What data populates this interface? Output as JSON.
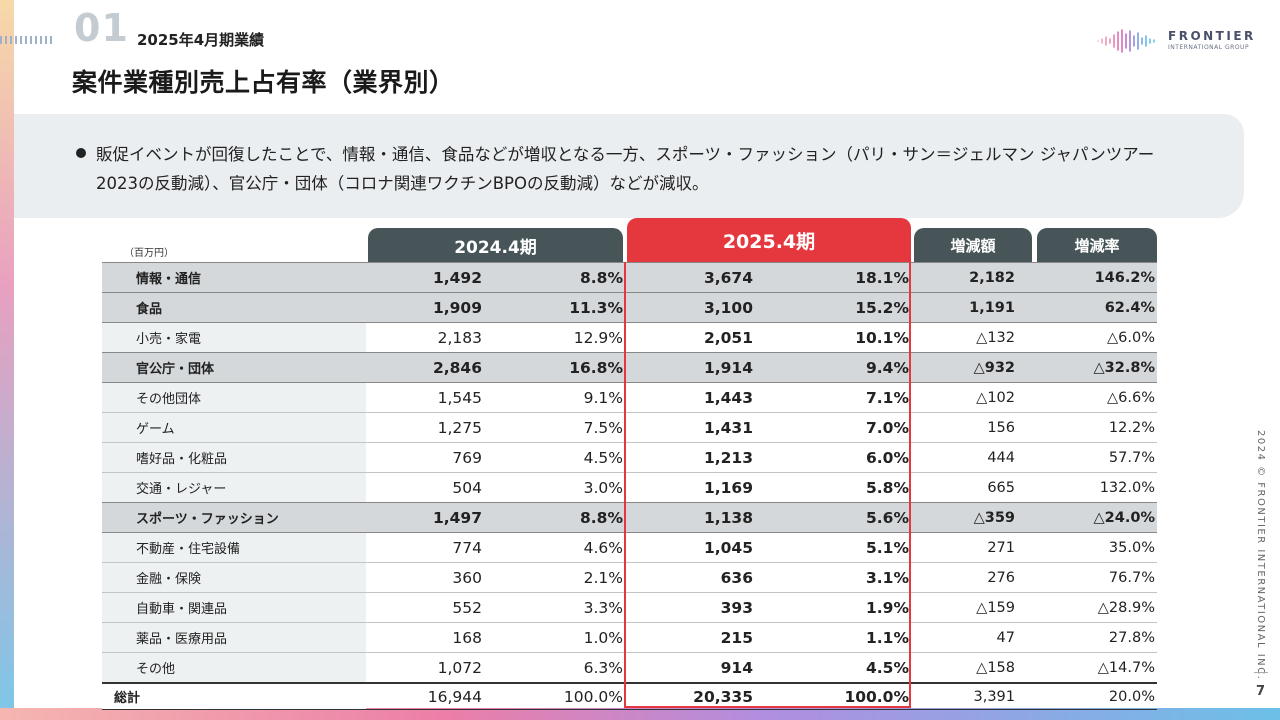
{
  "section": {
    "number": "01",
    "subtitle": "2025年4月期業績"
  },
  "title": "案件業種別売上占有率（業界別）",
  "logo": {
    "name": "FRONTIER",
    "sub": "INTERNATIONAL GROUP"
  },
  "summary": "販促イベントが回復したことで、情報・通信、食品などが増収となる一方、スポーツ・ファッション（パリ・サン＝ジェルマン ジャパンツアー2023の反動減）、官公庁・団体（コロナ関連ワクチンBPOの反動減）などが減収。",
  "copyright": "2024 © FRONTIER INTERNATIONAL INC.",
  "page_number": "7",
  "table": {
    "unit": "（百万円）",
    "headers": {
      "fy2024": "2024.4期",
      "fy2025": "2025.4期",
      "diff": "増減額",
      "rate": "増減率"
    },
    "rows": [
      {
        "label": "情報・通信",
        "v24": "1,492",
        "p24": "8.8%",
        "v25": "3,674",
        "p25": "18.1%",
        "diff": "2,182",
        "rate": "146.2%",
        "hl": true
      },
      {
        "label": "食品",
        "v24": "1,909",
        "p24": "11.3%",
        "v25": "3,100",
        "p25": "15.2%",
        "diff": "1,191",
        "rate": "62.4%",
        "hl": true
      },
      {
        "label": "小売・家電",
        "v24": "2,183",
        "p24": "12.9%",
        "v25": "2,051",
        "p25": "10.1%",
        "diff": "△132",
        "rate": "△6.0%",
        "hl": false
      },
      {
        "label": "官公庁・団体",
        "v24": "2,846",
        "p24": "16.8%",
        "v25": "1,914",
        "p25": "9.4%",
        "diff": "△932",
        "rate": "△32.8%",
        "hl": true
      },
      {
        "label": "その他団体",
        "v24": "1,545",
        "p24": "9.1%",
        "v25": "1,443",
        "p25": "7.1%",
        "diff": "△102",
        "rate": "△6.6%",
        "hl": false
      },
      {
        "label": "ゲーム",
        "v24": "1,275",
        "p24": "7.5%",
        "v25": "1,431",
        "p25": "7.0%",
        "diff": "156",
        "rate": "12.2%",
        "hl": false
      },
      {
        "label": "嗜好品・化粧品",
        "v24": "769",
        "p24": "4.5%",
        "v25": "1,213",
        "p25": "6.0%",
        "diff": "444",
        "rate": "57.7%",
        "hl": false
      },
      {
        "label": "交通・レジャー",
        "v24": "504",
        "p24": "3.0%",
        "v25": "1,169",
        "p25": "5.8%",
        "diff": "665",
        "rate": "132.0%",
        "hl": false
      },
      {
        "label": "スポーツ・ファッション",
        "v24": "1,497",
        "p24": "8.8%",
        "v25": "1,138",
        "p25": "5.6%",
        "diff": "△359",
        "rate": "△24.0%",
        "hl": true
      },
      {
        "label": "不動産・住宅設備",
        "v24": "774",
        "p24": "4.6%",
        "v25": "1,045",
        "p25": "5.1%",
        "diff": "271",
        "rate": "35.0%",
        "hl": false
      },
      {
        "label": "金融・保険",
        "v24": "360",
        "p24": "2.1%",
        "v25": "636",
        "p25": "3.1%",
        "diff": "276",
        "rate": "76.7%",
        "hl": false
      },
      {
        "label": "自動車・関連品",
        "v24": "552",
        "p24": "3.3%",
        "v25": "393",
        "p25": "1.9%",
        "diff": "△159",
        "rate": "△28.9%",
        "hl": false
      },
      {
        "label": "薬品・医療用品",
        "v24": "168",
        "p24": "1.0%",
        "v25": "215",
        "p25": "1.1%",
        "diff": "47",
        "rate": "27.8%",
        "hl": false
      },
      {
        "label": "その他",
        "v24": "1,072",
        "p24": "6.3%",
        "v25": "914",
        "p25": "4.5%",
        "diff": "△158",
        "rate": "△14.7%",
        "hl": false
      }
    ],
    "total": {
      "label": "総計",
      "v24": "16,944",
      "p24": "100.0%",
      "v25": "20,335",
      "p25": "100.0%",
      "diff": "3,391",
      "rate": "20.0%"
    }
  },
  "colors": {
    "accent": "#e5383e",
    "header_dark": "#475558",
    "highlight_row": "#d4d8da",
    "summary_bg": "#eaeef0"
  }
}
